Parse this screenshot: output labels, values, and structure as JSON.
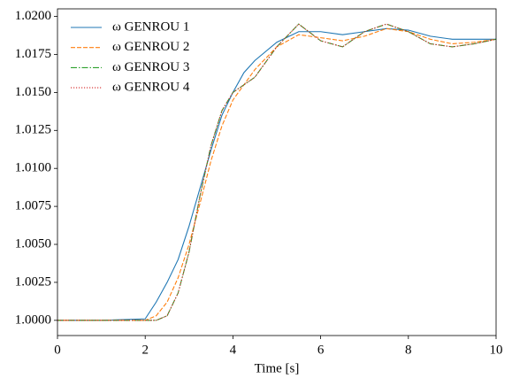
{
  "chart_data": {
    "type": "line",
    "xlabel": "Time [s]",
    "x": [
      0,
      1,
      2,
      2.25,
      2.5,
      2.75,
      3,
      3.25,
      3.5,
      3.75,
      4,
      4.25,
      4.5,
      5,
      5.5,
      6,
      6.5,
      7,
      7.5,
      8,
      8.5,
      9,
      9.5,
      10
    ],
    "series": [
      {
        "name": "ω GENROU 1",
        "color": "#1f77b4",
        "style": "solid",
        "values": [
          1.0,
          1.0,
          1.0001,
          1.0012,
          1.0025,
          1.004,
          1.0062,
          1.0087,
          1.0112,
          1.0135,
          1.015,
          1.0163,
          1.0171,
          1.0183,
          1.019,
          1.019,
          1.0188,
          1.019,
          1.0192,
          1.0191,
          1.0187,
          1.0185,
          1.0185,
          1.0185
        ]
      },
      {
        "name": "ω GENROU 2",
        "color": "#ff7f0e",
        "style": "dashed",
        "values": [
          1.0,
          1.0,
          1.0,
          1.0003,
          1.0012,
          1.0028,
          1.005,
          1.0077,
          1.0105,
          1.0128,
          1.0145,
          1.0155,
          1.0165,
          1.018,
          1.0188,
          1.0186,
          1.0184,
          1.0187,
          1.0192,
          1.019,
          1.0185,
          1.0182,
          1.0183,
          1.0185
        ]
      },
      {
        "name": "ω GENROU 3",
        "color": "#2ca02c",
        "style": "dashdot",
        "values": [
          1.0,
          1.0,
          1.0,
          1.0,
          1.0003,
          1.0018,
          1.0045,
          1.0082,
          1.0115,
          1.0138,
          1.015,
          1.0155,
          1.016,
          1.018,
          1.0195,
          1.0184,
          1.018,
          1.019,
          1.0195,
          1.019,
          1.0182,
          1.018,
          1.0182,
          1.0185
        ]
      },
      {
        "name": "ω GENROU 4",
        "color": "#d62728",
        "style": "dotted",
        "values": [
          1.0,
          1.0,
          1.0,
          1.0,
          1.0003,
          1.0018,
          1.0045,
          1.0082,
          1.0115,
          1.0138,
          1.015,
          1.0155,
          1.016,
          1.018,
          1.0195,
          1.0184,
          1.018,
          1.019,
          1.0195,
          1.019,
          1.0182,
          1.018,
          1.0182,
          1.0185
        ]
      }
    ],
    "xlim": [
      0,
      10
    ],
    "xticks": [
      0,
      2,
      4,
      6,
      8,
      10
    ],
    "ylim": [
      0.999,
      1.0205
    ],
    "yticks": [
      {
        "value": 1.0,
        "label": "1.0000"
      },
      {
        "value": 1.0025,
        "label": "1.0025"
      },
      {
        "value": 1.005,
        "label": "1.0050"
      },
      {
        "value": 1.0075,
        "label": "1.0075"
      },
      {
        "value": 1.01,
        "label": "1.0100"
      },
      {
        "value": 1.0125,
        "label": "1.0125"
      },
      {
        "value": 1.015,
        "label": "1.0150"
      },
      {
        "value": 1.0175,
        "label": "1.0175"
      },
      {
        "value": 1.02,
        "label": "1.0200"
      }
    ],
    "legend": "upper-left",
    "grid": false
  }
}
